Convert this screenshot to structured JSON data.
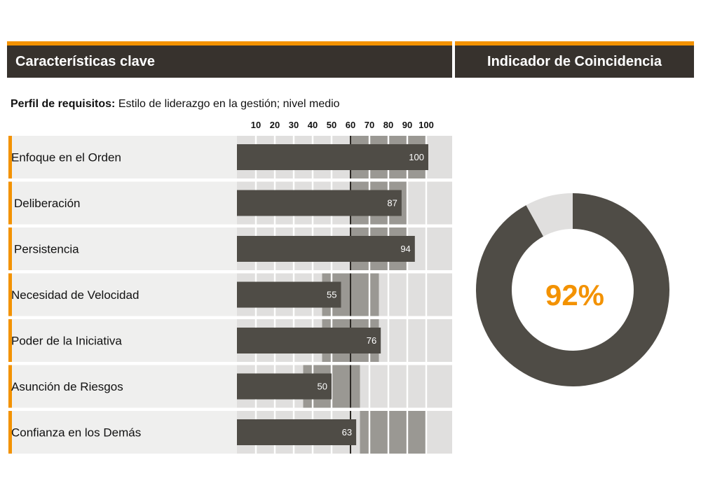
{
  "header": {
    "left_title": "Características clave",
    "right_title": "Indicador de Coincidencia"
  },
  "profile": {
    "label": "Perfil de requisitos:",
    "value": "Estilo de liderazgo en la gestión; nivel medio"
  },
  "colors": {
    "accent": "#f39200",
    "dark": "#37322d",
    "bar": "#4f4c46",
    "range": "#9a9893",
    "track": "#e0dfde",
    "row": "#efefee"
  },
  "chart_data": [
    {
      "type": "bar",
      "orientation": "horizontal",
      "title": "Características clave",
      "ticks": [
        10,
        20,
        30,
        40,
        50,
        60,
        70,
        80,
        90,
        100
      ],
      "xlim": [
        0,
        113
      ],
      "reference_line": 60,
      "categories": [
        "Enfoque en el Orden",
        "Deliberación",
        "Persistencia",
        "Necesidad de Velocidad",
        "Poder de la Iniciativa",
        "Asunción de Riesgos",
        "Confianza en los Demás"
      ],
      "values": [
        100,
        87,
        94,
        55,
        76,
        50,
        63
      ],
      "labels": [
        "100",
        "87",
        "94",
        "55",
        "76",
        "50",
        "63"
      ],
      "required_ranges": [
        [
          60,
          100
        ],
        [
          60,
          90
        ],
        [
          60,
          90
        ],
        [
          45,
          75
        ],
        [
          45,
          75
        ],
        [
          35,
          65
        ],
        [
          65,
          100
        ]
      ]
    },
    {
      "type": "pie",
      "donut": true,
      "title": "Indicador de Coincidencia",
      "values": [
        92,
        8
      ],
      "center_label": "92%"
    }
  ]
}
